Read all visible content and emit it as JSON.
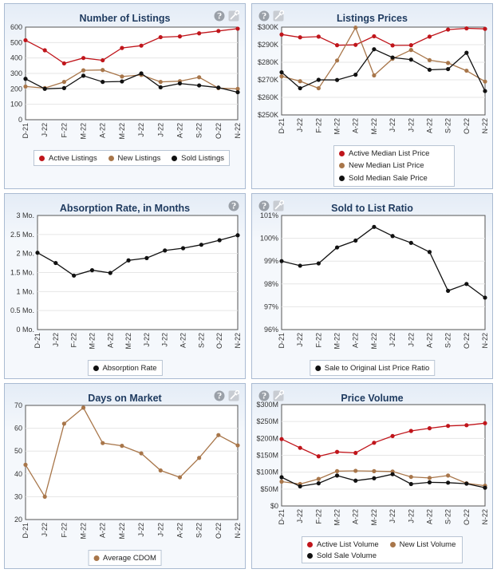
{
  "colors": {
    "red": "#c0151b",
    "brown": "#a8764a",
    "black": "#111111",
    "title": "#1e3a5f"
  },
  "months": [
    "D-21",
    "J-22",
    "F-22",
    "M-22",
    "A-22",
    "M-22",
    "J-22",
    "J-22",
    "A-22",
    "S-22",
    "O-22",
    "N-22"
  ],
  "chart_data": [
    {
      "id": "listings",
      "type": "line",
      "title": "Number of Listings",
      "icons": [
        "help-icon",
        "settings-icon"
      ],
      "ylim": [
        0,
        600
      ],
      "ticks": [
        0,
        100,
        200,
        300,
        400,
        500,
        600
      ],
      "tick_labels": [
        "0",
        "100",
        "200",
        "300",
        "400",
        "500",
        "600"
      ],
      "series": [
        {
          "name": "Active Listings",
          "color": "#c0151b",
          "values": [
            515,
            450,
            365,
            400,
            385,
            465,
            480,
            535,
            540,
            560,
            575,
            590
          ]
        },
        {
          "name": "New Listings",
          "color": "#a8764a",
          "values": [
            215,
            205,
            245,
            320,
            322,
            280,
            290,
            245,
            250,
            275,
            205,
            200
          ]
        },
        {
          "name": "Sold Listings",
          "color": "#111111",
          "values": [
            265,
            200,
            205,
            285,
            245,
            248,
            300,
            210,
            235,
            222,
            208,
            178
          ]
        }
      ]
    },
    {
      "id": "prices",
      "type": "line",
      "title": "Listings Prices",
      "icons": [
        "help-icon",
        "settings-icon"
      ],
      "ylim": [
        250000,
        300000
      ],
      "ticks": [
        250000,
        260000,
        270000,
        280000,
        290000,
        300000
      ],
      "tick_labels": [
        "$250K",
        "$260K",
        "$270K",
        "$280K",
        "$290K",
        "$300K"
      ],
      "series": [
        {
          "name": "Active Median List Price",
          "color": "#c0151b",
          "values": [
            295800,
            294200,
            294600,
            289700,
            289900,
            294800,
            289600,
            289700,
            294600,
            298600,
            299300,
            299000
          ]
        },
        {
          "name": "New Median List Price",
          "color": "#a8764a",
          "values": [
            272000,
            269200,
            265200,
            281000,
            299700,
            272500,
            282000,
            287000,
            281200,
            279600,
            275200,
            269000
          ]
        },
        {
          "name": "Sold Median Sale Price",
          "color": "#111111",
          "values": [
            274300,
            265200,
            270000,
            269900,
            272900,
            287400,
            282700,
            281500,
            275700,
            276100,
            285400,
            263600
          ]
        }
      ]
    },
    {
      "id": "absorption",
      "type": "line",
      "title": "Absorption Rate, in Months",
      "icons": [
        "help-icon"
      ],
      "ylim": [
        0,
        3
      ],
      "ticks": [
        0,
        0.5,
        1,
        1.5,
        2,
        2.5,
        3
      ],
      "tick_labels": [
        "0 Mo.",
        "0.5 Mo.",
        "1 Mo.",
        "1.5 Mo.",
        "2 Mo.",
        "2.5 Mo.",
        "3 Mo."
      ],
      "series": [
        {
          "name": "Absorption Rate",
          "color": "#111111",
          "values": [
            2.02,
            1.75,
            1.42,
            1.56,
            1.49,
            1.82,
            1.88,
            2.08,
            2.14,
            2.23,
            2.35,
            2.48
          ]
        }
      ]
    },
    {
      "id": "ratio",
      "type": "line",
      "title": "Sold to List Ratio",
      "icons": [
        "help-icon",
        "settings-icon"
      ],
      "ylim": [
        96,
        101
      ],
      "ticks": [
        96,
        97,
        98,
        99,
        100,
        101
      ],
      "tick_labels": [
        "96%",
        "97%",
        "98%",
        "99%",
        "100%",
        "101%"
      ],
      "series": [
        {
          "name": "Sale to Original List Price Ratio",
          "color": "#111111",
          "values": [
            99.0,
            98.8,
            98.9,
            99.6,
            99.9,
            100.5,
            100.1,
            99.8,
            99.4,
            97.7,
            98.0,
            97.4
          ]
        }
      ]
    },
    {
      "id": "dom",
      "type": "line",
      "title": "Days on Market",
      "icons": [
        "help-icon",
        "settings-icon"
      ],
      "ylim": [
        20,
        70
      ],
      "ticks": [
        20,
        30,
        40,
        50,
        60,
        70
      ],
      "tick_labels": [
        "20",
        "30",
        "40",
        "50",
        "60",
        "70"
      ],
      "series": [
        {
          "name": "Average CDOM",
          "color": "#a8764a",
          "values": [
            44,
            30,
            62,
            69,
            53.5,
            52.3,
            49,
            41.5,
            38.5,
            47,
            57,
            52.5
          ]
        }
      ]
    },
    {
      "id": "volume",
      "type": "line",
      "title": "Price Volume",
      "icons": [
        "help-icon",
        "settings-icon"
      ],
      "ylim": [
        0,
        300000000
      ],
      "ticks": [
        0,
        50000000,
        100000000,
        150000000,
        200000000,
        250000000,
        300000000
      ],
      "tick_labels": [
        "$0",
        "$50M",
        "$100M",
        "$150M",
        "$200M",
        "$250M",
        "$300M"
      ],
      "series": [
        {
          "name": "Active List Volume",
          "color": "#c0151b",
          "values": [
            198000000,
            172000000,
            147000000,
            160000000,
            157000000,
            187000000,
            207000000,
            222000000,
            230000000,
            237000000,
            239000000,
            245000000
          ]
        },
        {
          "name": "New List Volume",
          "color": "#a8764a",
          "values": [
            72000000,
            65000000,
            80000000,
            103000000,
            104000000,
            103000000,
            102000000,
            86000000,
            83000000,
            90000000,
            67000000,
            60000000
          ]
        },
        {
          "name": "Sold Sale Volume",
          "color": "#111111",
          "values": [
            85000000,
            58000000,
            67000000,
            90000000,
            75000000,
            82000000,
            94000000,
            65000000,
            70000000,
            69000000,
            66000000,
            54000000
          ]
        }
      ]
    }
  ]
}
